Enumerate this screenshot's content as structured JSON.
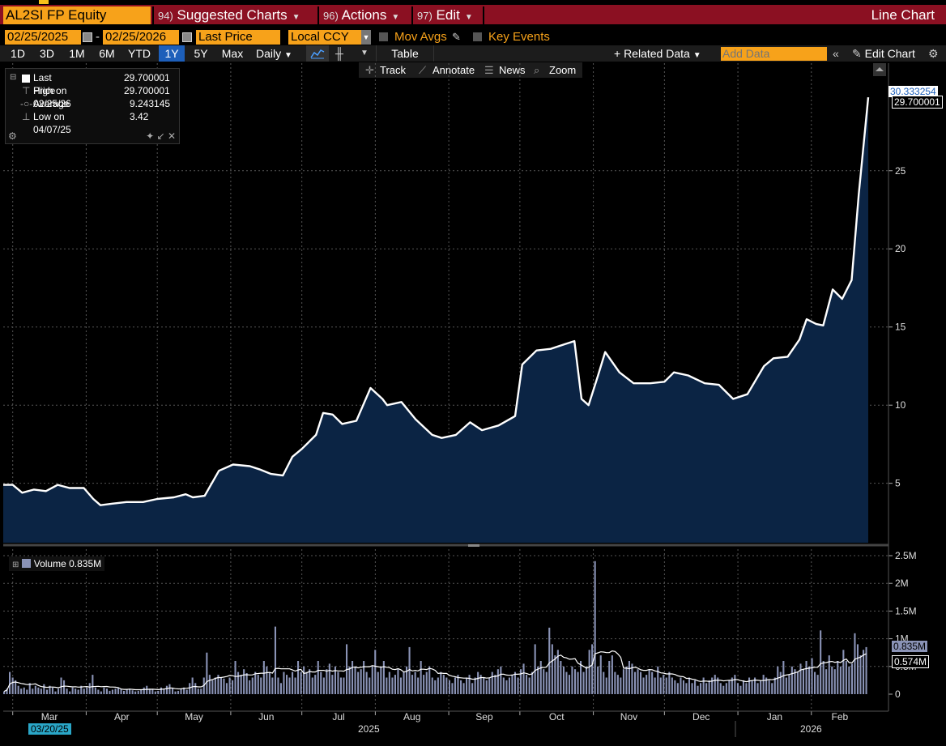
{
  "title_bar": {
    "ticker": "AL2SI FP Equity",
    "menus": [
      {
        "num": "94)",
        "label": "Suggested Charts"
      },
      {
        "num": "96)",
        "label": "Actions"
      },
      {
        "num": "97)",
        "label": "Edit"
      }
    ],
    "chart_type": "Line Chart"
  },
  "controls": {
    "start_date": "02/25/2025",
    "end_date": "02/25/2026",
    "date_separator": "-",
    "field": "Last Price",
    "currency": "Local CCY",
    "mov_avgs": "Mov Avgs",
    "key_events": "Key Events"
  },
  "periods": [
    "1D",
    "3D",
    "1M",
    "6M",
    "YTD",
    "1Y",
    "5Y",
    "Max"
  ],
  "active_period": "1Y",
  "frequency": "Daily",
  "toolbar": {
    "table": "Table",
    "related_data": "+ Related Data",
    "add_data_placeholder": "Add Data",
    "edit_chart": "Edit Chart"
  },
  "chart_tools": [
    "Track",
    "Annotate",
    "News",
    "Zoom"
  ],
  "legend": {
    "rows": [
      {
        "label": "Last Price",
        "value": "29.700001"
      },
      {
        "label": "High on 02/25/26",
        "value": "29.700001"
      },
      {
        "label": "Average",
        "value": "9.243145"
      },
      {
        "label": "Low on 04/07/25",
        "value": "3.42"
      }
    ]
  },
  "price_axis": {
    "ticks": [
      "5",
      "10",
      "15",
      "20",
      "25"
    ],
    "last_value_label": "29.700001",
    "top_label": "30.333254"
  },
  "volume_legend": {
    "label": "Volume",
    "value": "0.835M"
  },
  "volume_axis": {
    "ticks": [
      "0",
      "0.5M",
      "1M",
      "1.5M",
      "2M",
      "2.5M"
    ],
    "last_volume_label": "0.835M",
    "avg_volume_label": "0.574M"
  },
  "x_axis": {
    "months": [
      "Mar",
      "Apr",
      "May",
      "Jun",
      "Jul",
      "Aug",
      "Sep",
      "Oct",
      "Nov",
      "Dec",
      "Jan",
      "Feb"
    ],
    "years": [
      "2025",
      "2026"
    ],
    "cursor_date": "03/20/25"
  },
  "colors": {
    "title_bar": "#8b1022",
    "accent_orange": "#f7a21a",
    "area_fill": "#0b2444",
    "price_line": "#ffffff",
    "volume_bar": "#8a93b6",
    "active_button": "#1d5fba"
  },
  "chart_data": [
    {
      "type": "area",
      "series": [
        {
          "name": "Last Price",
          "x": [
            "2025-02-25",
            "2025-03-01",
            "2025-03-05",
            "2025-03-10",
            "2025-03-15",
            "2025-03-20",
            "2025-03-25",
            "2025-03-31",
            "2025-04-04",
            "2025-04-07",
            "2025-04-12",
            "2025-04-18",
            "2025-04-25",
            "2025-05-01",
            "2025-05-08",
            "2025-05-13",
            "2025-05-16",
            "2025-05-21",
            "2025-05-27",
            "2025-06-02",
            "2025-06-09",
            "2025-06-13",
            "2025-06-18",
            "2025-06-23",
            "2025-06-27",
            "2025-07-01",
            "2025-07-07",
            "2025-07-10",
            "2025-07-14",
            "2025-07-18",
            "2025-07-24",
            "2025-07-30",
            "2025-08-04",
            "2025-08-06",
            "2025-08-12",
            "2025-08-18",
            "2025-08-25",
            "2025-08-29",
            "2025-09-04",
            "2025-09-10",
            "2025-09-15",
            "2025-09-22",
            "2025-09-29",
            "2025-10-02",
            "2025-10-08",
            "2025-10-14",
            "2025-10-20",
            "2025-10-24",
            "2025-10-27",
            "2025-10-30",
            "2025-11-03",
            "2025-11-06",
            "2025-11-12",
            "2025-11-18",
            "2025-11-25",
            "2025-12-01",
            "2025-12-05",
            "2025-12-11",
            "2025-12-18",
            "2025-12-24",
            "2025-12-30",
            "2026-01-05",
            "2026-01-12",
            "2026-01-16",
            "2026-01-22",
            "2026-01-27",
            "2026-01-30",
            "2026-02-03",
            "2026-02-06",
            "2026-02-10",
            "2026-02-14",
            "2026-02-18",
            "2026-02-21",
            "2026-02-25"
          ],
          "values": [
            4.9,
            4.9,
            4.4,
            4.6,
            4.5,
            4.9,
            4.7,
            4.7,
            4.0,
            3.6,
            3.7,
            3.8,
            3.8,
            4.0,
            4.1,
            4.3,
            4.1,
            4.2,
            5.8,
            6.2,
            6.1,
            5.9,
            5.6,
            5.5,
            6.7,
            7.2,
            8.1,
            9.5,
            9.4,
            8.8,
            9.0,
            11.1,
            10.4,
            10.0,
            10.2,
            9.1,
            8.1,
            7.9,
            8.1,
            8.9,
            8.4,
            8.7,
            9.3,
            12.6,
            13.5,
            13.6,
            13.9,
            14.1,
            10.4,
            10.0,
            11.9,
            13.4,
            12.1,
            11.4,
            11.4,
            11.5,
            12.1,
            11.9,
            11.4,
            11.3,
            10.4,
            10.7,
            12.5,
            13.0,
            13.1,
            14.2,
            15.5,
            15.2,
            15.1,
            17.4,
            16.8,
            18.0,
            23.5,
            29.7
          ]
        }
      ],
      "ylim": [
        1.2,
        31
      ],
      "ytick_values": [
        5,
        10,
        15,
        20,
        25
      ],
      "grid": true
    },
    {
      "type": "bar",
      "series": [
        {
          "name": "Volume",
          "values": [
            0.05,
            0.1,
            0.4,
            0.3,
            0.25,
            0.15,
            0.1,
            0.12,
            0.08,
            0.2,
            0.1,
            0.15,
            0.12,
            0.1,
            0.18,
            0.08,
            0.15,
            0.12,
            0.05,
            0.1,
            0.3,
            0.25,
            0.1,
            0.05,
            0.12,
            0.1,
            0.08,
            0.15,
            0.1,
            0.12,
            0.2,
            0.35,
            0.12,
            0.08,
            0.05,
            0.12,
            0.1,
            0.06,
            0.08,
            0.1,
            0.12,
            0.09,
            0.06,
            0.08,
            0.1,
            0.07,
            0.05,
            0.06,
            0.08,
            0.12,
            0.15,
            0.1,
            0.08,
            0.05,
            0.06,
            0.12,
            0.1,
            0.15,
            0.18,
            0.1,
            0.05,
            0.06,
            0.1,
            0.12,
            0.08,
            0.2,
            0.3,
            0.2,
            0.1,
            0.1,
            0.3,
            0.75,
            0.35,
            0.25,
            0.3,
            0.35,
            0.3,
            0.28,
            0.2,
            0.3,
            0.25,
            0.6,
            0.4,
            0.35,
            0.45,
            0.38,
            0.25,
            0.3,
            0.4,
            0.35,
            0.3,
            0.6,
            0.5,
            0.4,
            0.3,
            1.22,
            0.3,
            0.2,
            0.4,
            0.35,
            0.3,
            0.4,
            0.3,
            0.6,
            0.4,
            0.5,
            0.4,
            0.45,
            0.3,
            0.35,
            0.6,
            0.4,
            0.3,
            0.45,
            0.55,
            0.35,
            0.5,
            0.4,
            0.3,
            0.3,
            0.9,
            0.5,
            0.6,
            0.5,
            0.4,
            0.45,
            0.6,
            0.4,
            0.3,
            0.5,
            0.8,
            0.4,
            0.5,
            0.6,
            0.3,
            0.4,
            0.3,
            0.35,
            0.45,
            0.3,
            0.4,
            0.5,
            0.85,
            0.35,
            0.4,
            0.3,
            0.6,
            0.35,
            0.4,
            0.5,
            0.3,
            0.25,
            0.3,
            0.4,
            0.35,
            0.3,
            0.25,
            0.2,
            0.3,
            0.35,
            0.25,
            0.2,
            0.3,
            0.35,
            0.2,
            0.3,
            0.4,
            0.35,
            0.3,
            0.25,
            0.3,
            0.4,
            0.35,
            0.45,
            0.5,
            0.3,
            0.25,
            0.3,
            0.35,
            0.4,
            0.3,
            0.45,
            0.55,
            0.35,
            0.3,
            0.4,
            0.9,
            0.5,
            0.6,
            0.45,
            0.4,
            1.2,
            0.9,
            0.7,
            0.8,
            0.6,
            0.5,
            0.4,
            0.35,
            0.5,
            0.45,
            0.4,
            0.6,
            0.4,
            0.5,
            0.8,
            0.9,
            2.4,
            0.5,
            0.7,
            0.4,
            0.3,
            0.6,
            0.7,
            0.4,
            0.35,
            0.3,
            0.45,
            0.5,
            0.6,
            0.55,
            0.4,
            0.45,
            0.4,
            0.3,
            0.35,
            0.45,
            0.4,
            0.3,
            0.5,
            0.3,
            0.35,
            0.3,
            0.4,
            0.3,
            0.25,
            0.2,
            0.3,
            0.25,
            0.2,
            0.3,
            0.2,
            0.25,
            0.15,
            0.2,
            0.3,
            0.2,
            0.25,
            0.3,
            0.35,
            0.3,
            0.2,
            0.15,
            0.2,
            0.25,
            0.3,
            0.35,
            0.2,
            0.15,
            0.25,
            0.2,
            0.3,
            0.25,
            0.3,
            0.2,
            0.25,
            0.35,
            0.3,
            0.25,
            0.2,
            0.3,
            0.5,
            0.4,
            0.6,
            0.3,
            0.35,
            0.5,
            0.45,
            0.4,
            0.55,
            0.45,
            0.6,
            0.5,
            0.65,
            0.4,
            0.35,
            1.15,
            0.6,
            0.45,
            0.7,
            0.5,
            0.45,
            0.6,
            0.5,
            0.8,
            0.6,
            0.5,
            0.55,
            1.1,
            0.9,
            0.7,
            0.8,
            0.85
          ]
        }
      ],
      "ylim": [
        0,
        2.5
      ],
      "ytick_values": [
        0,
        0.5,
        1,
        1.5,
        2,
        2.5
      ]
    }
  ]
}
